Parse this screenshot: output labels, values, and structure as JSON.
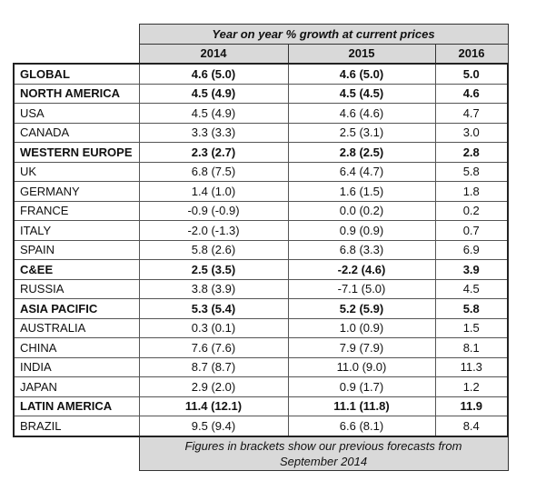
{
  "header": {
    "title": "Year on year % growth at current prices",
    "columns": [
      "2014",
      "2015",
      "2016"
    ]
  },
  "table": {
    "rows": [
      {
        "cells": [
          "GLOBAL",
          "4.6 (5.0)",
          "4.6 (5.0)",
          "5.0"
        ],
        "bold": true
      },
      {
        "cells": [
          "NORTH AMERICA",
          "4.5 (4.9)",
          "4.5 (4.5)",
          "4.6"
        ],
        "bold": true
      },
      {
        "cells": [
          "USA",
          "4.5 (4.9)",
          "4.6 (4.6)",
          "4.7"
        ],
        "bold": false
      },
      {
        "cells": [
          "CANADA",
          "3.3 (3.3)",
          "2.5 (3.1)",
          "3.0"
        ],
        "bold": false
      },
      {
        "cells": [
          "WESTERN EUROPE",
          "2.3 (2.7)",
          "2.8 (2.5)",
          "2.8"
        ],
        "bold": true
      },
      {
        "cells": [
          "UK",
          "6.8 (7.5)",
          "6.4 (4.7)",
          "5.8"
        ],
        "bold": false
      },
      {
        "cells": [
          "GERMANY",
          "1.4 (1.0)",
          "1.6 (1.5)",
          "1.8"
        ],
        "bold": false
      },
      {
        "cells": [
          "FRANCE",
          "-0.9 (-0.9)",
          "0.0 (0.2)",
          "0.2"
        ],
        "bold": false
      },
      {
        "cells": [
          "ITALY",
          "-2.0 (-1.3)",
          "0.9 (0.9)",
          "0.7"
        ],
        "bold": false
      },
      {
        "cells": [
          "SPAIN",
          "5.8 (2.6)",
          "6.8 (3.3)",
          "6.9"
        ],
        "bold": false
      },
      {
        "cells": [
          "C&EE",
          "2.5 (3.5)",
          "-2.2 (4.6)",
          "3.9"
        ],
        "bold": true
      },
      {
        "cells": [
          "RUSSIA",
          "3.8 (3.9)",
          "-7.1 (5.0)",
          "4.5"
        ],
        "bold": false
      },
      {
        "cells": [
          "ASIA PACIFIC",
          "5.3 (5.4)",
          "5.2 (5.9)",
          "5.8"
        ],
        "bold": true
      },
      {
        "cells": [
          "AUSTRALIA",
          "0.3 (0.1)",
          "1.0 (0.9)",
          "1.5"
        ],
        "bold": false
      },
      {
        "cells": [
          "CHINA",
          "7.6 (7.6)",
          "7.9 (7.9)",
          "8.1"
        ],
        "bold": false
      },
      {
        "cells": [
          "INDIA",
          "8.7 (8.7)",
          "11.0 (9.0)",
          "11.3"
        ],
        "bold": false
      },
      {
        "cells": [
          "JAPAN",
          "2.9 (2.0)",
          "0.9 (1.7)",
          "1.2"
        ],
        "bold": false
      },
      {
        "cells": [
          "LATIN AMERICA",
          "11.4 (12.1)",
          "11.1 (11.8)",
          "11.9"
        ],
        "bold": true
      },
      {
        "cells": [
          "BRAZIL",
          "9.5 (9.4)",
          "6.6 (8.1)",
          "8.4"
        ],
        "bold": false
      }
    ]
  },
  "footer": {
    "note": "Figures in brackets show our previous forecasts from September 2014"
  }
}
